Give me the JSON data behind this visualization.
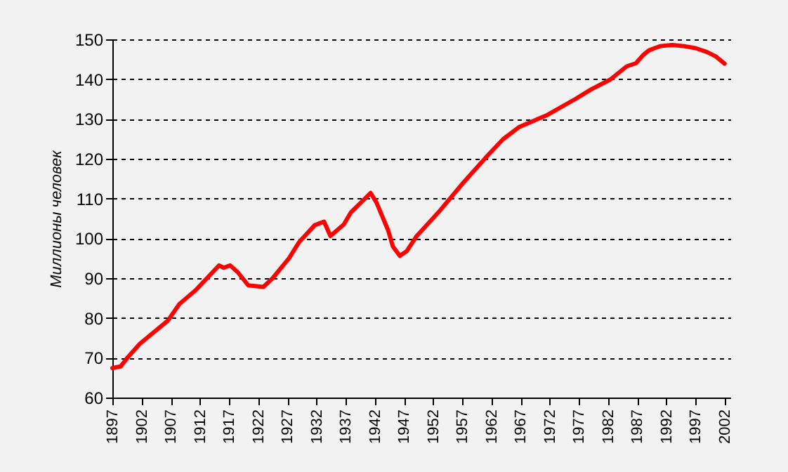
{
  "chart_data": {
    "type": "line",
    "ylabel": "Миллионы человек",
    "x": [
      1897,
      1898.4,
      1899.7,
      1901.7,
      1906.5,
      1908.5,
      1911.3,
      1915.3,
      1916.1,
      1917.2,
      1918.5,
      1920.3,
      1922.9,
      1924.5,
      1927.3,
      1929,
      1931.7,
      1933.3,
      1934.4,
      1936.7,
      1937.9,
      1941.3,
      1942.3,
      1944.3,
      1945.1,
      1946.3,
      1947.5,
      1949.2,
      1953.2,
      1957.2,
      1961.6,
      1964,
      1966.8,
      1971.6,
      1976.4,
      1979.2,
      1982.4,
      1985.2,
      1986.8,
      1988,
      1989,
      1990,
      1991,
      1993,
      1995,
      1997,
      1999,
      2000.5,
      2002
    ],
    "series": [
      {
        "color": "#ff0000",
        "values": [
          67.4,
          67.8,
          70.2,
          73.5,
          79.3,
          83.5,
          87,
          93.2,
          92.6,
          93.2,
          91.5,
          88.2,
          87.8,
          90,
          95,
          99,
          103.3,
          104.2,
          100.6,
          103.5,
          106.5,
          111.4,
          109,
          102,
          98,
          95.6,
          96.8,
          100.6,
          107,
          114,
          121.2,
          124.9,
          128,
          131,
          135,
          137.5,
          139.9,
          143.2,
          144,
          146,
          147.2,
          147.8,
          148.3,
          148.6,
          148.3,
          147.8,
          146.8,
          145.7,
          143.9
        ]
      }
    ],
    "xlim": [
      1897,
      2003
    ],
    "xticks": [
      1897,
      1902,
      1907,
      1912,
      1917,
      1922,
      1927,
      1932,
      1937,
      1942,
      1947,
      1952,
      1957,
      1962,
      1967,
      1972,
      1977,
      1982,
      1987,
      1992,
      1997,
      2002
    ],
    "ylim": [
      60,
      150
    ],
    "yticks": [
      60,
      70,
      80,
      90,
      100,
      110,
      120,
      130,
      140,
      150
    ],
    "grid": "y",
    "line_style": "solid",
    "marker": "none"
  }
}
